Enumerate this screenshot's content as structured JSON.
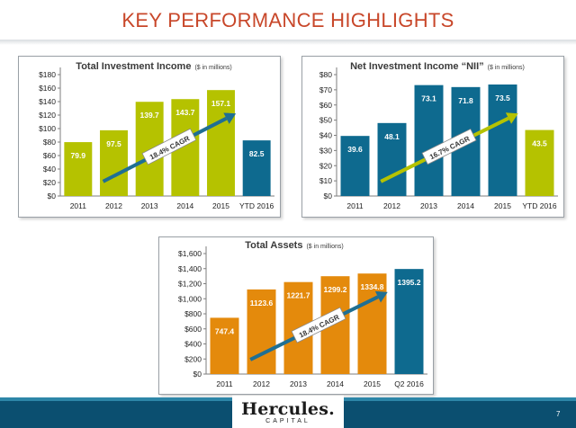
{
  "page": {
    "title": "KEY PERFORMANCE HIGHLIGHTS",
    "logo_text": "Hercules.",
    "logo_subtext": "CAPITAL",
    "page_number": "7"
  },
  "colors": {
    "title": "#c8472a",
    "green": "#b5c200",
    "blue": "#0e6a8f",
    "orange": "#e48a0c",
    "arrow_blue": "#1f6f93",
    "arrow_green": "#b5c200"
  },
  "chart_data": [
    {
      "type": "bar",
      "title": "Total Investment Income",
      "title_unit": "($ in millions)",
      "categories": [
        "2011",
        "2012",
        "2013",
        "2014",
        "2015",
        "YTD 2016"
      ],
      "values": [
        79.9,
        97.5,
        139.7,
        143.7,
        157.1,
        82.5
      ],
      "value_labels": [
        "79.9",
        "97.5",
        "139.7",
        "143.7",
        "157.1",
        "82.5"
      ],
      "bar_colors": [
        "green",
        "green",
        "green",
        "green",
        "green",
        "blue"
      ],
      "ylim": [
        0,
        180
      ],
      "y_ticks": [
        0,
        20,
        40,
        60,
        80,
        100,
        120,
        140,
        160,
        180
      ],
      "y_tick_labels": [
        "$0",
        "$20",
        "$40",
        "$60",
        "$80",
        "$100",
        "$120",
        "$140",
        "$160",
        "$180"
      ],
      "annotation": "18.4% CAGR",
      "arrow_color": "arrow_blue",
      "grid": false
    },
    {
      "type": "bar",
      "title": "Net Investment Income “NII”",
      "title_unit": "($ in millions)",
      "categories": [
        "2011",
        "2012",
        "2013",
        "2014",
        "2015",
        "YTD 2016"
      ],
      "values": [
        39.6,
        48.1,
        73.1,
        71.8,
        73.5,
        43.5
      ],
      "value_labels": [
        "39.6",
        "48.1",
        "73.1",
        "71.8",
        "73.5",
        "43.5"
      ],
      "bar_colors": [
        "blue",
        "blue",
        "blue",
        "blue",
        "blue",
        "green"
      ],
      "ylim": [
        0,
        80
      ],
      "y_ticks": [
        0,
        10,
        20,
        30,
        40,
        50,
        60,
        70,
        80
      ],
      "y_tick_labels": [
        "$0",
        "$10",
        "$20",
        "$30",
        "$40",
        "$50",
        "$60",
        "$70",
        "$80"
      ],
      "annotation": "16.7% CAGR",
      "arrow_color": "arrow_green",
      "grid": false
    },
    {
      "type": "bar",
      "title": "Total Assets",
      "title_unit": "($ in millions)",
      "categories": [
        "2011",
        "2012",
        "2013",
        "2014",
        "2015",
        "Q2 2016"
      ],
      "values": [
        747.4,
        1123.6,
        1221.7,
        1299.2,
        1334.8,
        1395.2
      ],
      "value_labels": [
        "747.4",
        "1123.6",
        "1221.7",
        "1299.2",
        "1334.8",
        "1395.2"
      ],
      "bar_colors": [
        "orange",
        "orange",
        "orange",
        "orange",
        "orange",
        "blue"
      ],
      "ylim": [
        0,
        1600
      ],
      "y_ticks": [
        0,
        200,
        400,
        600,
        800,
        1000,
        1200,
        1400,
        1600
      ],
      "y_tick_labels": [
        "$0",
        "$200",
        "$400",
        "$600",
        "$800",
        "$1,000",
        "$1,200",
        "$1,400",
        "$1,600"
      ],
      "annotation": "18.4% CAGR",
      "arrow_color": "arrow_blue",
      "grid": false
    }
  ]
}
